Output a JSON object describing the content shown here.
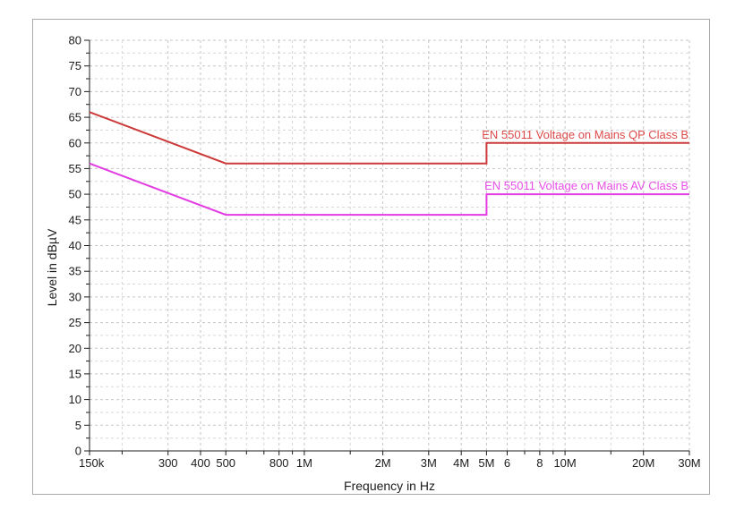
{
  "window": {
    "background": "#ffffff",
    "panel_border": "#a9a9a9",
    "panel_background": "#ffffff"
  },
  "chart_data": {
    "type": "line",
    "title": "",
    "xlabel": "Frequency in Hz",
    "ylabel": "Level in dBµV",
    "x_scale": "log",
    "xlim_hz": [
      150000,
      30000000
    ],
    "ylim": [
      0,
      80
    ],
    "y_major_step": 5,
    "y_minor_step": 2.5,
    "grid": true,
    "legend_position": "inline-right-above-line",
    "axis_color": "#1c1c1c",
    "tick_label_color": "#1c1c1c",
    "grid_major_color": "#c5c5c5",
    "grid_minor_color": "#d7d7d7",
    "y_ticks": [
      {
        "value": 0,
        "label": "0"
      },
      {
        "value": 5,
        "label": "5"
      },
      {
        "value": 10,
        "label": "10"
      },
      {
        "value": 15,
        "label": "15"
      },
      {
        "value": 20,
        "label": "20"
      },
      {
        "value": 25,
        "label": "25"
      },
      {
        "value": 30,
        "label": "30"
      },
      {
        "value": 35,
        "label": "35"
      },
      {
        "value": 40,
        "label": "40"
      },
      {
        "value": 45,
        "label": "45"
      },
      {
        "value": 50,
        "label": "50"
      },
      {
        "value": 55,
        "label": "55"
      },
      {
        "value": 60,
        "label": "60"
      },
      {
        "value": 65,
        "label": "65"
      },
      {
        "value": 70,
        "label": "70"
      },
      {
        "value": 75,
        "label": "75"
      },
      {
        "value": 80,
        "label": "80"
      }
    ],
    "x_ticks": [
      {
        "hz": 150000,
        "label": "150k"
      },
      {
        "hz": 200000,
        "label": ""
      },
      {
        "hz": 300000,
        "label": "300"
      },
      {
        "hz": 400000,
        "label": "400"
      },
      {
        "hz": 500000,
        "label": "500"
      },
      {
        "hz": 600000,
        "label": ""
      },
      {
        "hz": 700000,
        "label": ""
      },
      {
        "hz": 800000,
        "label": "800"
      },
      {
        "hz": 900000,
        "label": ""
      },
      {
        "hz": 1000000,
        "label": "1M"
      },
      {
        "hz": 1500000,
        "label": ""
      },
      {
        "hz": 2000000,
        "label": "2M"
      },
      {
        "hz": 3000000,
        "label": "3M"
      },
      {
        "hz": 4000000,
        "label": "4M"
      },
      {
        "hz": 5000000,
        "label": "5M"
      },
      {
        "hz": 6000000,
        "label": "6"
      },
      {
        "hz": 7000000,
        "label": ""
      },
      {
        "hz": 8000000,
        "label": "8"
      },
      {
        "hz": 9000000,
        "label": ""
      },
      {
        "hz": 10000000,
        "label": "10M"
      },
      {
        "hz": 15000000,
        "label": ""
      },
      {
        "hz": 20000000,
        "label": "20M"
      },
      {
        "hz": 30000000,
        "label": "30M"
      }
    ],
    "series": [
      {
        "name": "EN 55011 Voltage on Mains QP Class B",
        "color": "#cc3a3a",
        "label_color": "#dd4a4a",
        "points_hz_dbuv": [
          [
            150000,
            66
          ],
          [
            500000,
            56
          ],
          [
            5000000,
            56
          ],
          [
            5000000,
            60
          ],
          [
            30000000,
            60
          ]
        ]
      },
      {
        "name": "EN 55011 Voltage on Mains AV Class B",
        "color": "#e23ce2",
        "label_color": "#e84fe8",
        "points_hz_dbuv": [
          [
            150000,
            56
          ],
          [
            500000,
            46
          ],
          [
            5000000,
            46
          ],
          [
            5000000,
            50
          ],
          [
            30000000,
            50
          ]
        ]
      }
    ]
  }
}
